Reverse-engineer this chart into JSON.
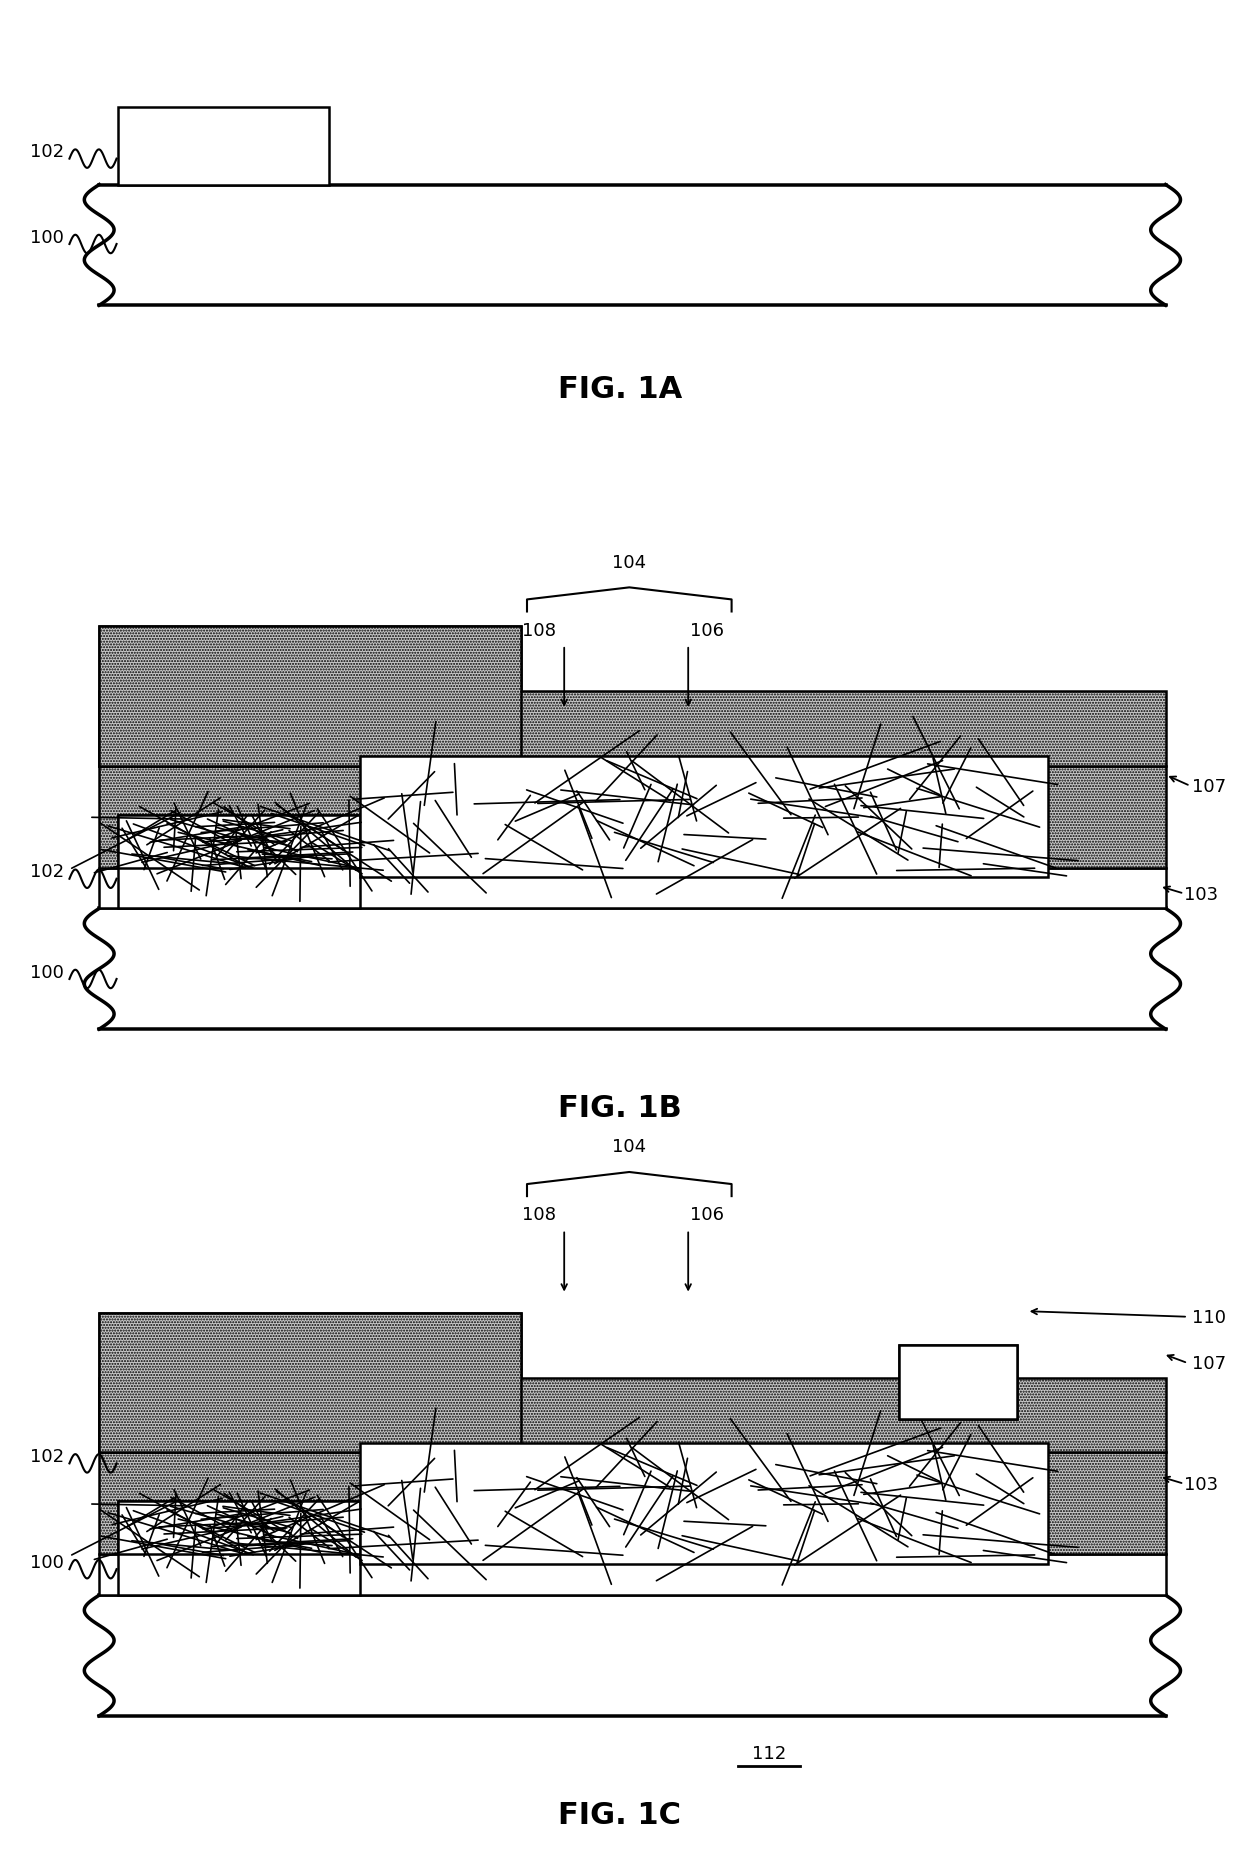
{
  "bg_color": "#ffffff",
  "line_color": "#000000",
  "stipple_color": "#c8c8c8",
  "fig1a_title": "FIG. 1A",
  "fig1b_title": "FIG. 1B",
  "fig1c_title": "FIG. 1C",
  "label_fontsize": 13,
  "title_fontsize": 22
}
